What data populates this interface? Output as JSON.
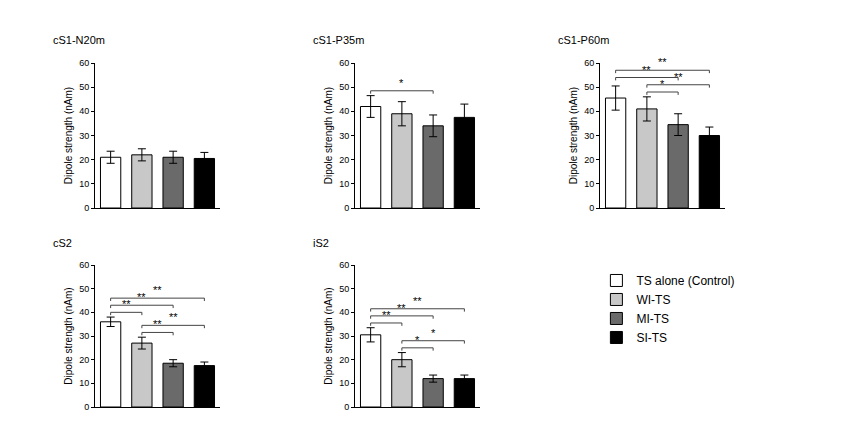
{
  "chart_data": [
    {
      "type": "bar",
      "title": "cS1-N20m",
      "y_label": "Dipole strength (nAm)",
      "categories": [
        "TS alone (Control)",
        "WI-TS",
        "MI-TS",
        "SI-TS"
      ],
      "colors": [
        "#ffffff",
        "#c8c8c8",
        "#6a6a6a",
        "#000000"
      ],
      "values": [
        21,
        22,
        21,
        20.5
      ],
      "errors": [
        2.5,
        2.5,
        2.5,
        2.5
      ],
      "significance": [],
      "ylim": [
        0,
        60
      ],
      "yticks": [
        0,
        10,
        20,
        30,
        40,
        50,
        60
      ],
      "tick_labels": "y",
      "legend": "bottom right"
    },
    {
      "type": "bar",
      "title": "cS1-P35m",
      "y_label": "Dipole strength (nAm)",
      "categories": [
        "TS alone (Control)",
        "WI-TS",
        "MI-TS",
        "SI-TS"
      ],
      "colors": [
        "#ffffff",
        "#c8c8c8",
        "#6a6a6a",
        "#000000"
      ],
      "values": [
        42,
        39,
        34,
        37.5
      ],
      "errors": [
        4.5,
        5,
        4.5,
        5.5
      ],
      "significance": [
        {
          "from": "TS alone (Control)",
          "to": "MI-TS",
          "label": "*"
        }
      ],
      "ylim": [
        0,
        60
      ],
      "yticks": [
        0,
        10,
        20,
        30,
        40,
        50,
        60
      ],
      "tick_labels": "y"
    },
    {
      "type": "bar",
      "title": "cS1-P60m",
      "y_label": "Dipole strength (nAm)",
      "categories": [
        "TS alone (Control)",
        "WI-TS",
        "MI-TS",
        "SI-TS"
      ],
      "colors": [
        "#ffffff",
        "#c8c8c8",
        "#6a6a6a",
        "#000000"
      ],
      "values": [
        45.5,
        41,
        34.5,
        30
      ],
      "errors": [
        5,
        5,
        4.5,
        3.5
      ],
      "significance": [
        {
          "from": "WI-TS",
          "to": "MI-TS",
          "label": "*"
        },
        {
          "from": "WI-TS",
          "to": "SI-TS",
          "label": "**"
        },
        {
          "from": "TS alone (Control)",
          "to": "MI-TS",
          "label": "**"
        },
        {
          "from": "TS alone (Control)",
          "to": "SI-TS",
          "label": "**"
        }
      ],
      "ylim": [
        0,
        60
      ],
      "yticks": [
        0,
        10,
        20,
        30,
        40,
        50,
        60
      ],
      "tick_labels": "y"
    },
    {
      "type": "bar",
      "title": "cS2",
      "y_label": "Dipole strength (nAm)",
      "categories": [
        "TS alone (Control)",
        "WI-TS",
        "MI-TS",
        "SI-TS"
      ],
      "colors": [
        "#ffffff",
        "#c8c8c8",
        "#6a6a6a",
        "#000000"
      ],
      "values": [
        36,
        27,
        18.5,
        17.5
      ],
      "errors": [
        2,
        2.5,
        1.5,
        1.5
      ],
      "significance": [
        {
          "from": "WI-TS",
          "to": "MI-TS",
          "label": "**"
        },
        {
          "from": "WI-TS",
          "to": "SI-TS",
          "label": "**"
        },
        {
          "from": "TS alone (Control)",
          "to": "WI-TS",
          "label": "**"
        },
        {
          "from": "TS alone (Control)",
          "to": "MI-TS",
          "label": "**"
        },
        {
          "from": "TS alone (Control)",
          "to": "SI-TS",
          "label": "**"
        }
      ],
      "ylim": [
        0,
        60
      ],
      "yticks": [
        0,
        10,
        20,
        30,
        40,
        50,
        60
      ],
      "tick_labels": "y"
    },
    {
      "type": "bar",
      "title": "iS2",
      "y_label": "Dipole strength (nAm)",
      "categories": [
        "TS alone (Control)",
        "WI-TS",
        "MI-TS",
        "SI-TS"
      ],
      "colors": [
        "#ffffff",
        "#c8c8c8",
        "#6a6a6a",
        "#000000"
      ],
      "values": [
        30.5,
        20,
        12,
        12
      ],
      "errors": [
        3,
        3,
        1.5,
        1.5
      ],
      "significance": [
        {
          "from": "WI-TS",
          "to": "MI-TS",
          "label": "*"
        },
        {
          "from": "WI-TS",
          "to": "SI-TS",
          "label": "*"
        },
        {
          "from": "TS alone (Control)",
          "to": "WI-TS",
          "label": "**"
        },
        {
          "from": "TS alone (Control)",
          "to": "MI-TS",
          "label": "**"
        },
        {
          "from": "TS alone (Control)",
          "to": "SI-TS",
          "label": "**"
        }
      ],
      "ylim": [
        0,
        60
      ],
      "yticks": [
        0,
        10,
        20,
        30,
        40,
        50,
        60
      ],
      "tick_labels": "y"
    }
  ]
}
